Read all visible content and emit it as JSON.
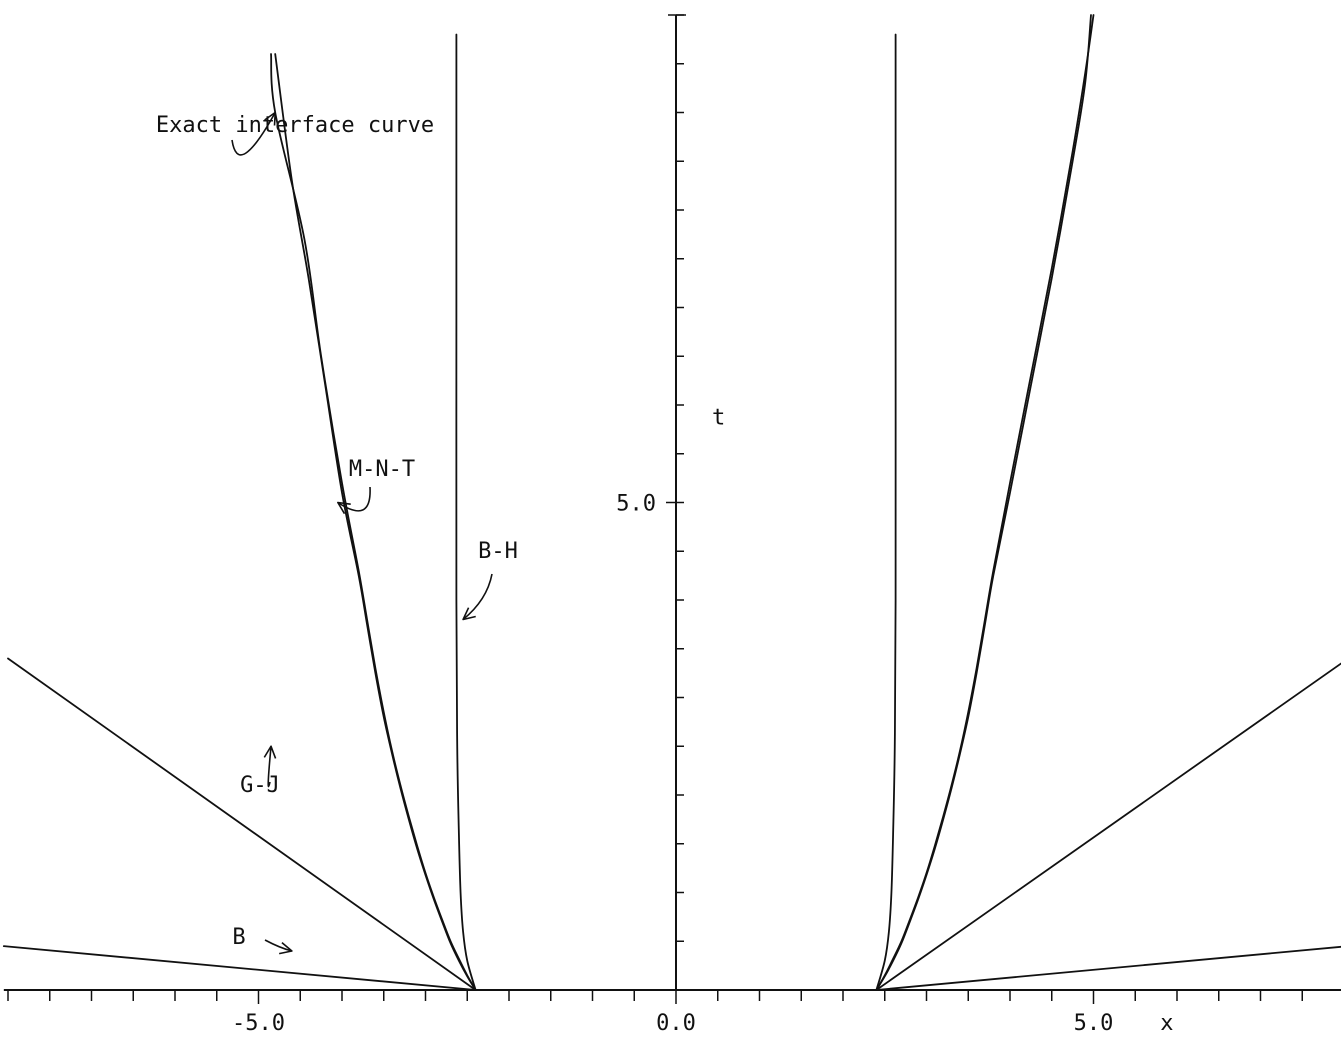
{
  "chart_data": {
    "type": "line",
    "title": "",
    "xlabel": "x",
    "ylabel": "t",
    "xlim": [
      -8.05,
      8.05
    ],
    "ylim": [
      0,
      10
    ],
    "x_ticks": {
      "minor_step": 0.5,
      "labels": [
        {
          "value": -5.0,
          "text": "-5.0"
        },
        {
          "value": 0.0,
          "text": "0.0"
        },
        {
          "value": 5.0,
          "text": "5.0"
        }
      ]
    },
    "t_ticks": {
      "minor_step": 0.5,
      "labels": [
        {
          "value": 5.0,
          "text": "5.0"
        }
      ]
    },
    "grid": false,
    "legend": "none",
    "x0": 2.4,
    "series": [
      {
        "name": "Exact interface curve",
        "branches": [
          {
            "x": [
              -2.4,
              -2.5,
              -2.6,
              -2.7,
              -2.8,
              -2.9,
              -3.0,
              -3.1,
              -3.2,
              -3.3,
              -3.4,
              -3.5,
              -3.6,
              -3.7,
              -3.8,
              -4.0,
              -4.25,
              -4.45,
              -4.8,
              -4.85
            ],
            "t": [
              0.0,
              0.15,
              0.32,
              0.5,
              0.72,
              0.95,
              1.2,
              1.48,
              1.78,
              2.1,
              2.45,
              2.85,
              3.3,
              3.8,
              4.3,
              5.2,
              6.5,
              7.7,
              9.0,
              9.6
            ]
          },
          {
            "x": [
              2.4,
              2.5,
              2.6,
              2.7,
              2.8,
              2.9,
              3.0,
              3.1,
              3.2,
              3.3,
              3.4,
              3.5,
              3.6,
              3.7,
              3.8,
              4.0,
              4.25,
              4.5,
              4.75,
              4.9,
              5.0
            ],
            "t": [
              0.0,
              0.15,
              0.32,
              0.5,
              0.72,
              0.95,
              1.2,
              1.48,
              1.78,
              2.1,
              2.45,
              2.85,
              3.3,
              3.8,
              4.3,
              5.2,
              6.3,
              7.4,
              8.6,
              9.4,
              10.0
            ]
          }
        ]
      },
      {
        "name": "M-N-T",
        "branches": [
          {
            "x": [
              -2.4,
              -2.5,
              -2.6,
              -2.7,
              -2.8,
              -2.9,
              -3.0,
              -3.1,
              -3.2,
              -3.3,
              -3.4,
              -3.5,
              -3.6,
              -3.7,
              -3.8,
              -4.0,
              -4.2,
              -4.4,
              -4.6,
              -4.8
            ],
            "t": [
              0.0,
              0.14,
              0.3,
              0.48,
              0.7,
              0.93,
              1.18,
              1.45,
              1.75,
              2.07,
              2.42,
              2.8,
              3.25,
              3.75,
              4.25,
              5.1,
              6.2,
              7.3,
              8.3,
              9.6
            ]
          },
          {
            "x": [
              2.4,
              2.5,
              2.6,
              2.7,
              2.8,
              2.9,
              3.0,
              3.1,
              3.2,
              3.3,
              3.4,
              3.5,
              3.6,
              3.7,
              3.8,
              4.0,
              4.25,
              4.5,
              4.75,
              4.9,
              4.97
            ],
            "t": [
              0.0,
              0.14,
              0.3,
              0.48,
              0.7,
              0.93,
              1.18,
              1.45,
              1.75,
              2.07,
              2.42,
              2.8,
              3.25,
              3.75,
              4.25,
              5.1,
              6.2,
              7.3,
              8.5,
              9.3,
              10.0
            ]
          }
        ]
      },
      {
        "name": "B-H",
        "branches": [
          {
            "x": [
              -2.4,
              -2.5,
              -2.55,
              -2.58,
              -2.6,
              -2.62,
              -2.63,
              -2.63,
              -2.63
            ],
            "t": [
              0.0,
              0.3,
              0.6,
              1.0,
              1.6,
              2.5,
              4.0,
              7.0,
              9.8
            ]
          },
          {
            "x": [
              2.4,
              2.5,
              2.55,
              2.58,
              2.6,
              2.62,
              2.63,
              2.63,
              2.63
            ],
            "t": [
              0.0,
              0.3,
              0.6,
              1.0,
              1.6,
              2.5,
              4.0,
              7.0,
              9.8
            ]
          }
        ]
      },
      {
        "name": "G-J",
        "branches": [
          {
            "x": [
              -2.4,
              -8.0
            ],
            "t": [
              0.0,
              3.4
            ]
          },
          {
            "x": [
              2.4,
              8.05
            ],
            "t": [
              0.0,
              3.4
            ]
          }
        ]
      },
      {
        "name": "B",
        "branches": [
          {
            "x": [
              -2.4,
              -8.05
            ],
            "t": [
              0.0,
              0.45
            ]
          },
          {
            "x": [
              2.4,
              8.05
            ],
            "t": [
              0.0,
              0.45
            ]
          }
        ]
      }
    ],
    "annotations": [
      {
        "text": "Exact interface curve",
        "series": "Exact interface curve",
        "target": {
          "x": -4.8,
          "t": 9.0
        }
      },
      {
        "text": "M-N-T",
        "series": "M-N-T",
        "target": {
          "x": -4.05,
          "t": 5.0
        }
      },
      {
        "text": "B-H",
        "series": "B-H",
        "target": {
          "x": -2.55,
          "t": 3.8
        }
      },
      {
        "text": "G-J",
        "series": "G-J",
        "target": {
          "x": -4.85,
          "t": 2.5
        }
      },
      {
        "text": "B",
        "series": "B",
        "target": {
          "x": -4.6,
          "t": 0.4
        }
      }
    ]
  }
}
